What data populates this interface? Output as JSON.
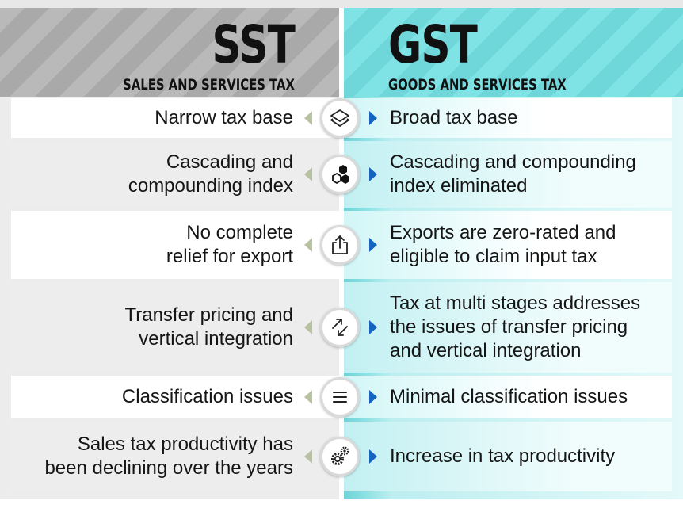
{
  "header": {
    "left": {
      "abbr": "SST",
      "full": "SALES AND SERVICES TAX"
    },
    "right": {
      "abbr": "GST",
      "full": "GOODS AND SERVICES TAX"
    }
  },
  "rows": [
    {
      "sst": "Narrow tax base",
      "icon": "layers-icon",
      "gst": "Broad tax base"
    },
    {
      "sst": "Cascading and\ncompounding index",
      "icon": "hexagons-icon",
      "gst": "Cascading and compounding\nindex eliminated"
    },
    {
      "sst": "No complete\nrelief for export",
      "icon": "share-export-icon",
      "gst": "Exports are zero-rated and\neligible to claim input tax"
    },
    {
      "sst": "Transfer pricing and\nvertical integration",
      "icon": "transfer-arrows-icon",
      "gst": "Tax at multi stages addresses\nthe issues of transfer pricing\nand vertical integration"
    },
    {
      "sst": "Classification issues",
      "icon": "menu-lines-icon",
      "gst": "Minimal classification issues"
    },
    {
      "sst": "Sales tax productivity has\nbeen declining over the years",
      "icon": "gears-icon",
      "gst": "Increase in tax productivity"
    }
  ],
  "colors": {
    "sst_header": "#b1b1b1",
    "gst_header": "#76dde0",
    "arrow_right": "#1565c0",
    "arrow_left": "#b8c2a2"
  }
}
